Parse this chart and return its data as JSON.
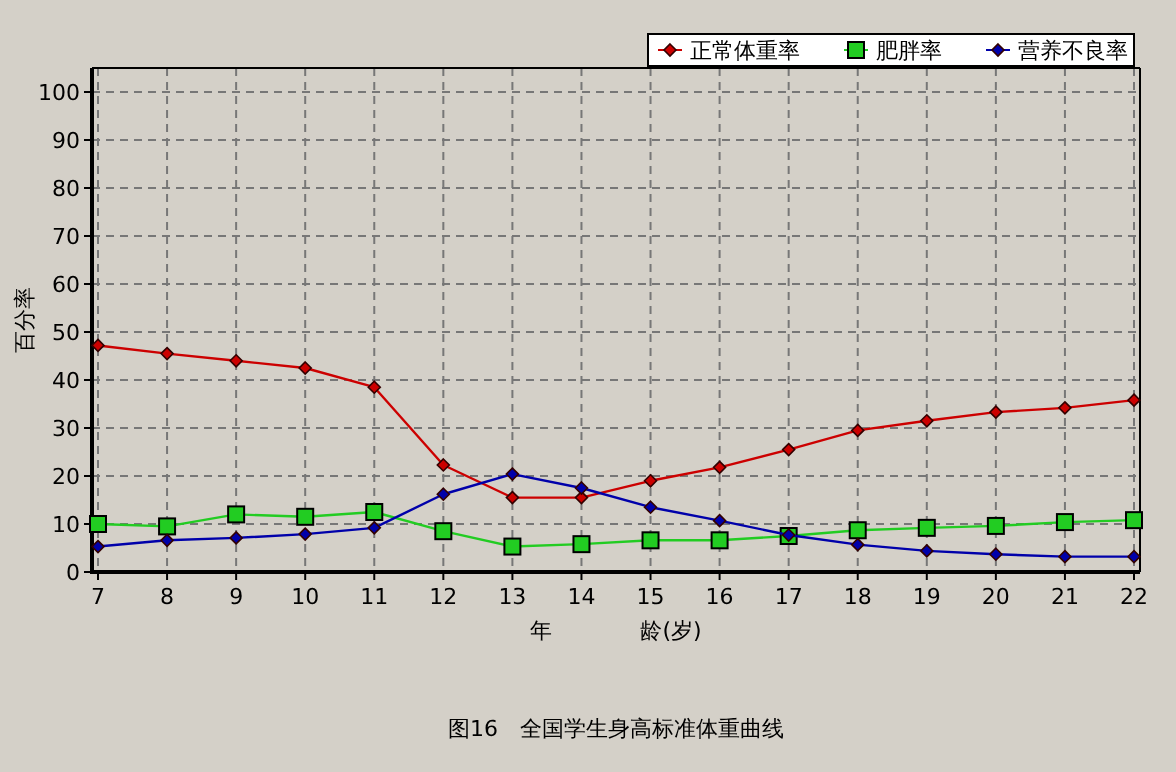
{
  "chart_data": {
    "type": "line",
    "title": "图16　全国学生身高标准体重曲线",
    "xlabel": "年　　　　龄(岁)",
    "ylabel": "百分率",
    "categories": [
      "7",
      "8",
      "9",
      "10",
      "11",
      "12",
      "13",
      "14",
      "15",
      "16",
      "17",
      "18",
      "19",
      "20",
      "21",
      "22"
    ],
    "series": [
      {
        "name": "正常体重率",
        "color": "#cc0000",
        "marker": "diamond",
        "values": [
          47.2,
          45.5,
          44,
          42.5,
          38.5,
          22.3,
          15.5,
          15.5,
          19,
          21.8,
          25.5,
          29.5,
          31.5,
          33.3,
          34.2,
          35.8
        ]
      },
      {
        "name": "肥胖率",
        "color": "#22cc22",
        "marker": "square",
        "values": [
          10,
          9.5,
          12,
          11.5,
          12.5,
          8.5,
          5.3,
          5.8,
          6.6,
          6.6,
          7.5,
          8.7,
          9.2,
          9.6,
          10.4,
          10.8
        ]
      },
      {
        "name": "营养不良率",
        "color": "#0000aa",
        "marker": "diamond",
        "values": [
          5.3,
          6.6,
          7.1,
          7.9,
          9.2,
          16.2,
          20.4,
          17.5,
          13.5,
          10.7,
          7.7,
          5.7,
          4.4,
          3.7,
          3.2,
          3.2
        ]
      }
    ],
    "ylim": [
      0,
      105
    ],
    "yticks": [
      0,
      10,
      20,
      30,
      40,
      50,
      60,
      70,
      80,
      90,
      100
    ],
    "grid": true,
    "legend": "top right",
    "line_style": "solid"
  }
}
